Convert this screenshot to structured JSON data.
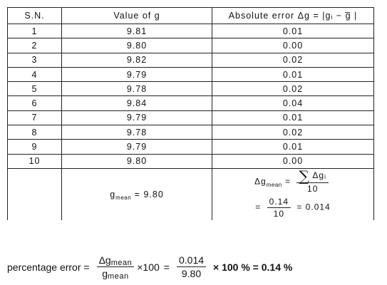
{
  "table": {
    "headers": {
      "sn": "S.N.",
      "value": "Value of g",
      "error": "Absolute error Δg = |gᵢ − g̅ |"
    },
    "rows": [
      {
        "sn": "1",
        "value": "9.81",
        "error": "0.01"
      },
      {
        "sn": "2",
        "value": "9.80",
        "error": "0.00"
      },
      {
        "sn": "3",
        "value": "9.82",
        "error": "0.02"
      },
      {
        "sn": "4",
        "value": "9.79",
        "error": "0.01"
      },
      {
        "sn": "5",
        "value": "9.78",
        "error": "0.02"
      },
      {
        "sn": "6",
        "value": "9.84",
        "error": "0.04"
      },
      {
        "sn": "7",
        "value": "9.79",
        "error": "0.01"
      },
      {
        "sn": "8",
        "value": "9.78",
        "error": "0.02"
      },
      {
        "sn": "9",
        "value": "9.79",
        "error": "0.01"
      },
      {
        "sn": "10",
        "value": "9.80",
        "error": "0.00"
      }
    ],
    "summary": {
      "gmean_label": "g",
      "gmean_sub": "mean",
      "gmean_value": "= 9.80",
      "dg_label": "Δg",
      "dg_sub": "mean",
      "eq": "=",
      "sigma": "∑",
      "sum_term": "Δgᵢ",
      "count": "10",
      "sum_value": "0.14",
      "result": "= 0.014"
    }
  },
  "percentage": {
    "label": "percentage error =",
    "num_label": "Δg",
    "num_sub": "mean",
    "den_label": "g",
    "den_sub": "mean",
    "times100": "×100",
    "eq1": "=",
    "num_value": "0.014",
    "den_value": "9.80",
    "tail": "× 100 % = 0.14 %"
  }
}
